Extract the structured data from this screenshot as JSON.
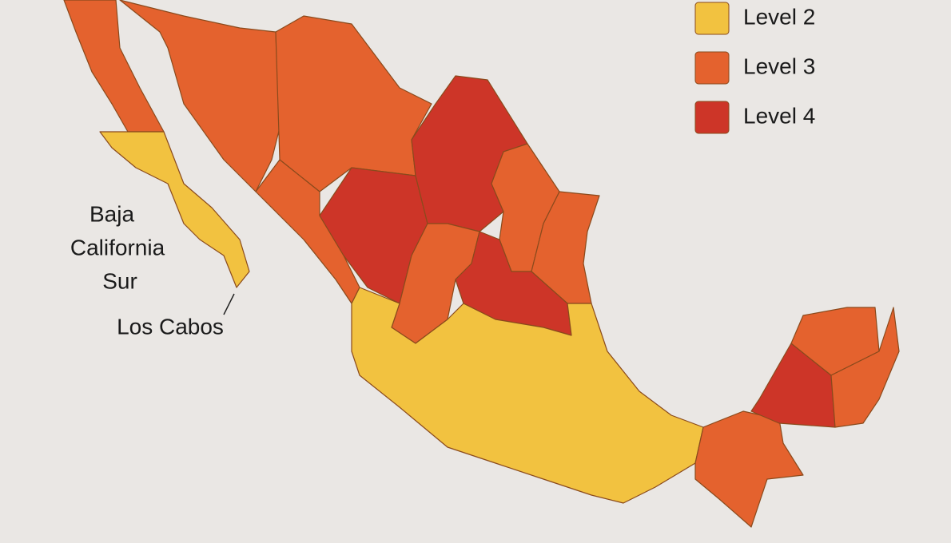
{
  "legend": {
    "items": [
      {
        "label": "Level 2",
        "color": "#f2c240"
      },
      {
        "label": "Level 3",
        "color": "#e4622e"
      },
      {
        "label": "Level 4",
        "color": "#cd3528"
      }
    ]
  },
  "annotations": {
    "state": [
      "Baja",
      "California",
      "Sur"
    ],
    "city": "Los Cabos"
  }
}
